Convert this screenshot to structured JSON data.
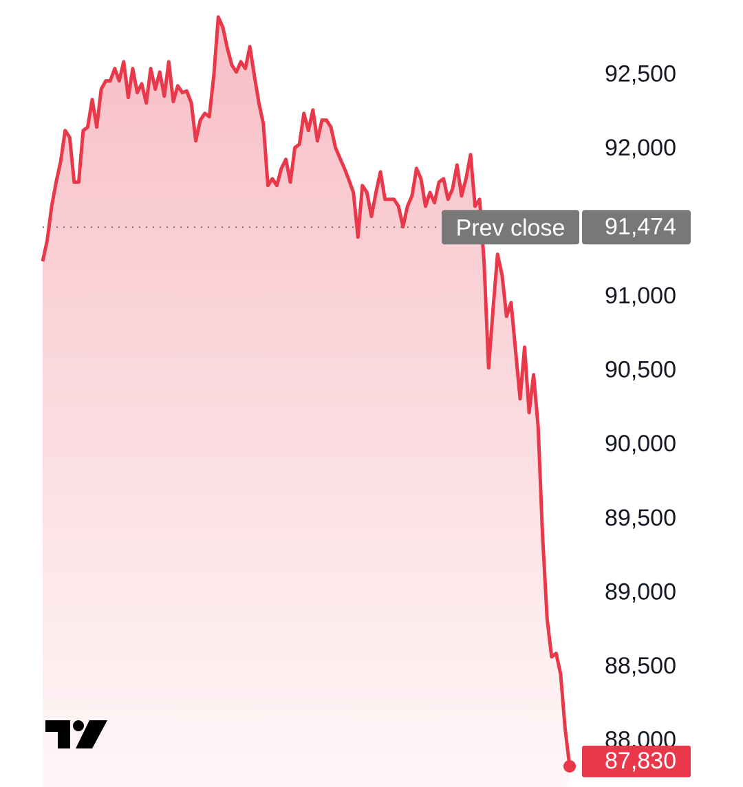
{
  "chart_data": {
    "type": "line",
    "color": "#e8384a",
    "values": [
      91244,
      91383,
      91616,
      91779,
      91919,
      92128,
      92081,
      91779,
      91779,
      92128,
      92151,
      92337,
      92151,
      92407,
      92463,
      92463,
      92547,
      92463,
      92593,
      92351,
      92547,
      92384,
      92444,
      92314,
      92547,
      92407,
      92523,
      92360,
      92593,
      92323,
      92430,
      92384,
      92395,
      92314,
      92058,
      92198,
      92244,
      92221,
      92500,
      92895,
      92826,
      92686,
      92570,
      92523,
      92593,
      92547,
      92695,
      92500,
      92314,
      92174,
      91756,
      91802,
      91756,
      91872,
      91933,
      91779,
      92012,
      92035,
      92244,
      92128,
      92267,
      92058,
      92198,
      92198,
      92151,
      92012,
      91942,
      91872,
      91793,
      91709,
      91407,
      91756,
      91709,
      91547,
      91709,
      91849,
      91663,
      91663,
      91663,
      91616,
      91477,
      91616,
      91686,
      91872,
      91802,
      91616,
      91709,
      91640,
      91779,
      91802,
      91663,
      91733,
      91895,
      91686,
      91802,
      91965,
      91616,
      91663,
      91244,
      90523,
      90919,
      91291,
      91151,
      90872,
      90965,
      90640,
      90314,
      90663,
      90221,
      90477,
      90128,
      89384,
      88826,
      88570,
      88593,
      88454,
      88081,
      87830
    ],
    "ylim": [
      87690,
      93010
    ],
    "yticks": [
      {
        "value": 88000,
        "label": "88,000"
      },
      {
        "value": 88500,
        "label": "88,500"
      },
      {
        "value": 89000,
        "label": "89,000"
      },
      {
        "value": 89500,
        "label": "89,500"
      },
      {
        "value": 90000,
        "label": "90,000"
      },
      {
        "value": 90500,
        "label": "90,500"
      },
      {
        "value": 91000,
        "label": "91,000"
      },
      {
        "value": 92000,
        "label": "92,000"
      },
      {
        "value": 92500,
        "label": "92,500"
      }
    ],
    "prev_close": {
      "label": "Prev close",
      "value": 91474,
      "value_label": "91,474"
    },
    "last_price": {
      "value": 87830,
      "label": "87,830"
    }
  }
}
